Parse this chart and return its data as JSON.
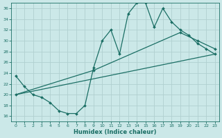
{
  "bg_color": "#cbe8e8",
  "grid_color": "#b0d0d0",
  "line_color": "#1a6e64",
  "xlabel": "Humidex (Indice chaleur)",
  "xlim": [
    -0.5,
    23.5
  ],
  "ylim": [
    15,
    37
  ],
  "yticks": [
    16,
    18,
    20,
    22,
    24,
    26,
    28,
    30,
    32,
    34,
    36
  ],
  "xticks": [
    0,
    1,
    2,
    3,
    4,
    5,
    6,
    7,
    8,
    9,
    10,
    11,
    12,
    13,
    14,
    15,
    16,
    17,
    18,
    19,
    20,
    21,
    22,
    23
  ],
  "line1_x": [
    0,
    1,
    2,
    3,
    4,
    5,
    6,
    7,
    8,
    9,
    10,
    11,
    12,
    13,
    14,
    15,
    16,
    17,
    18,
    19,
    20,
    21,
    22,
    23
  ],
  "line1_y": [
    23.5,
    21.5,
    20.0,
    19.5,
    18.5,
    17.0,
    16.5,
    16.5,
    18.0,
    25.0,
    30.0,
    32.0,
    27.5,
    35.0,
    37.0,
    37.0,
    32.5,
    36.0,
    33.5,
    32.0,
    31.0,
    29.5,
    28.5,
    27.5
  ],
  "line2_x": [
    0,
    23
  ],
  "line2_y": [
    20.0,
    27.5
  ],
  "line3_x": [
    0,
    9,
    19,
    21,
    23
  ],
  "line3_y": [
    20.0,
    24.5,
    31.5,
    30.0,
    28.5
  ]
}
